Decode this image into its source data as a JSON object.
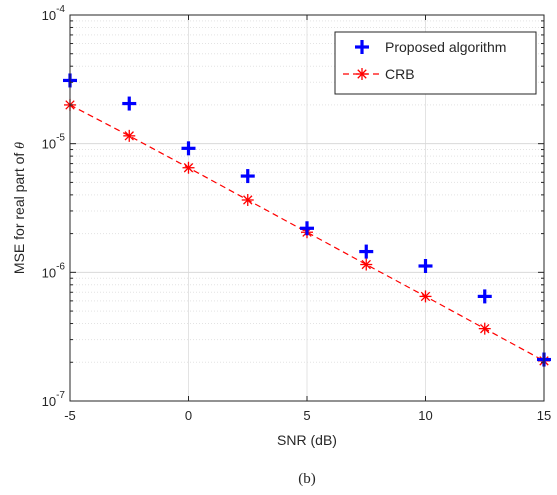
{
  "chart_data": {
    "type": "scatter",
    "x": [
      -5,
      -2.5,
      0,
      2.5,
      5,
      7.5,
      10,
      12.5,
      15
    ],
    "series": [
      {
        "name": "Proposed algorithm",
        "style": "markers",
        "marker": "plus",
        "color": "#0000ff",
        "values": [
          3.1e-05,
          2.05e-05,
          9.2e-06,
          5.6e-06,
          2.2e-06,
          1.45e-06,
          1.12e-06,
          6.5e-07,
          2.1e-07
        ]
      },
      {
        "name": "CRB",
        "style": "dashed-line-markers",
        "marker": "asterisk",
        "color": "#ff0000",
        "values": [
          2e-05,
          1.15e-05,
          6.5e-06,
          3.65e-06,
          2.05e-06,
          1.15e-06,
          6.5e-07,
          3.65e-07,
          2.05e-07
        ]
      }
    ],
    "xlabel": "SNR (dB)",
    "ylabel": "MSE for real part of θ",
    "xlim": [
      -5,
      15
    ],
    "ylim": [
      1e-07,
      0.0001
    ],
    "xscale": "linear",
    "yscale": "log",
    "xticks": [
      "-5",
      "0",
      "5",
      "10",
      "15"
    ],
    "grid": true,
    "minor_grid": true,
    "legend_position": "top-right",
    "caption": "(b)"
  }
}
